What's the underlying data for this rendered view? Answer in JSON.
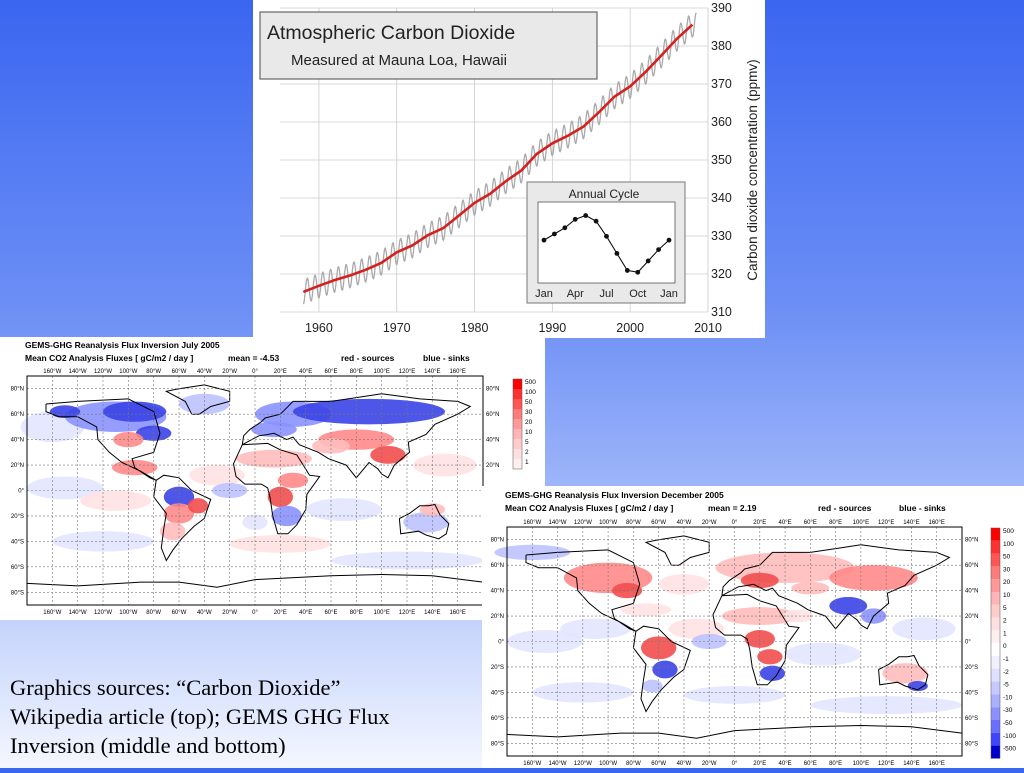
{
  "chart_data": [
    {
      "type": "line",
      "title": "Atmospheric Carbon Dioxide",
      "subtitle": "Measured at Mauna Loa, Hawaii",
      "ylabel": "Carbon dioxide concentration (ppmv)",
      "xlabel": "",
      "xlim": [
        1955,
        2010
      ],
      "ylim": [
        310,
        390
      ],
      "x_ticks": [
        "1960",
        "1970",
        "1980",
        "1990",
        "2000",
        "2010"
      ],
      "y_ticks": [
        "310",
        "320",
        "330",
        "340",
        "350",
        "360",
        "370",
        "380",
        "390"
      ],
      "grid": true,
      "series": [
        {
          "color": "#d62020",
          "x": [
            1958,
            1960,
            1962,
            1964,
            1966,
            1968,
            1970,
            1972,
            1974,
            1976,
            1978,
            1980,
            1982,
            1984,
            1986,
            1988,
            1990,
            1992,
            1994,
            1996,
            1998,
            2000,
            2002,
            2004,
            2006,
            2008
          ],
          "y": [
            315.3,
            316.9,
            318.4,
            319.6,
            321.1,
            322.9,
            325.7,
            327.5,
            330.2,
            332.1,
            335.4,
            338.7,
            341.1,
            344.4,
            347.2,
            351.6,
            354.4,
            356.4,
            358.8,
            362.6,
            366.7,
            369.4,
            373.2,
            377.5,
            381.9,
            385.6
          ]
        }
      ],
      "seasonal_amplitude_ppmv": 3.2,
      "inset": {
        "title": "Annual Cycle",
        "categories": [
          "Jan",
          "Feb",
          "Mar",
          "Apr",
          "May",
          "Jun",
          "Jul",
          "Aug",
          "Sep",
          "Oct",
          "Nov",
          "Dec",
          "Jan"
        ],
        "x_tick_labels": [
          "Jan",
          "Apr",
          "Jul",
          "Oct",
          "Jan"
        ],
        "values": [
          0.0,
          0.65,
          1.3,
          2.2,
          2.6,
          2.0,
          0.4,
          -1.4,
          -3.2,
          -3.4,
          -2.2,
          -1.0,
          0.0
        ]
      }
    },
    {
      "type": "heatmap",
      "title": "GEMS-GHG Reanalysis Flux Inversion July 2005",
      "subtitle": "Mean CO2 Analysis Fluxes [ gC/m2 / day ]",
      "mean_label": "mean = -4.53",
      "legend_sources": "red - sources",
      "legend_sinks": "blue - sinks",
      "lon_labels": [
        "160°W",
        "140°W",
        "120°W",
        "100°W",
        "80°W",
        "60°W",
        "40°W",
        "20°W",
        "0°",
        "20°E",
        "40°E",
        "60°E",
        "80°E",
        "100°E",
        "120°E",
        "140°E",
        "160°E"
      ],
      "lat_labels": [
        "80°N",
        "60°N",
        "40°N",
        "20°N",
        "0°",
        "20°S",
        "40°S",
        "60°S",
        "80°S"
      ],
      "colorbar": [
        "500",
        "100",
        "50",
        "30",
        "20",
        "10",
        "5",
        "2",
        "1"
      ],
      "colorbar_colors": [
        "#ff0000",
        "#ff3030",
        "#ff5555",
        "#ff7a7a",
        "#ff9999",
        "#ffb5b5",
        "#ffcccc",
        "#ffe0e0",
        "#fff0f0"
      ]
    },
    {
      "type": "heatmap",
      "title": "GEMS-GHG Reanalysis Flux Inversion December 2005",
      "subtitle": "Mean CO2 Analysis Fluxes [ gC/m2 / day ]",
      "mean_label": "mean = 2.19",
      "legend_sources": "red - sources",
      "legend_sinks": "blue - sinks",
      "lon_labels": [
        "160°W",
        "140°W",
        "120°W",
        "100°W",
        "80°W",
        "60°W",
        "40°W",
        "20°W",
        "0°",
        "20°E",
        "40°E",
        "60°E",
        "80°E",
        "100°E",
        "120°E",
        "140°E",
        "160°E"
      ],
      "lat_labels": [
        "80°N",
        "60°N",
        "40°N",
        "20°N",
        "0°",
        "20°S",
        "40°S",
        "60°S",
        "80°S"
      ],
      "colorbar": [
        "500",
        "100",
        "50",
        "30",
        "20",
        "10",
        "5",
        "2",
        "1",
        "0",
        "-1",
        "-2",
        "-5",
        "-10",
        "-30",
        "-50",
        "-100",
        "-500"
      ],
      "colorbar_colors": [
        "#ff0000",
        "#ff3030",
        "#ff5555",
        "#ff7a7a",
        "#ff9999",
        "#ffb5b5",
        "#ffcccc",
        "#ffe0e0",
        "#fff0f0",
        "#ffffff",
        "#f0f0ff",
        "#dde0ff",
        "#c5c9ff",
        "#a9b0ff",
        "#8a90ff",
        "#6a6fff",
        "#3f44ff",
        "#0000cc"
      ]
    }
  ],
  "caption": {
    "line1": "Graphics sources: “Carbon Dioxide”",
    "line2": "Wikipedia article (top); GEMS GHG Flux",
    "line3": "Inversion (middle and bottom)"
  },
  "colors": {
    "source_red": "#e8262b",
    "sink_blue": "#2a3ee0",
    "co2_line": "#d62020",
    "seasonal_gray": "#a9a9a9"
  }
}
